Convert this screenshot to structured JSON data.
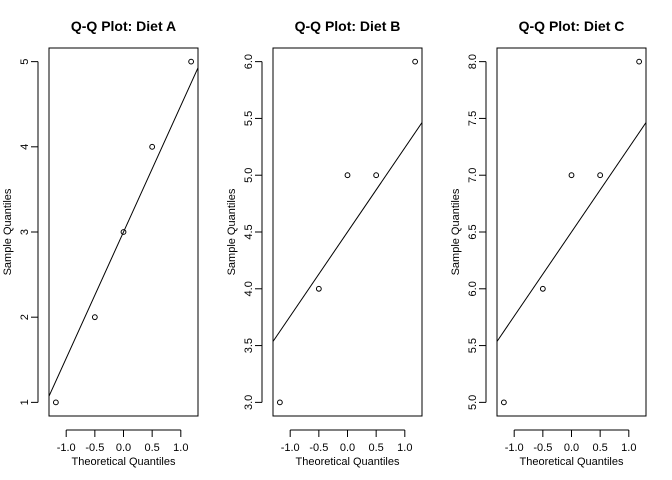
{
  "chart_data": [
    {
      "type": "scatter",
      "title": "Q-Q Plot: Diet A",
      "xlabel": "Theoretical Quantiles",
      "ylabel": "Sample Quantiles",
      "xlim": [
        -1.3,
        1.3
      ],
      "ylim": [
        0.84,
        5.16
      ],
      "x_ticks": [
        -1.0,
        -0.5,
        0.0,
        0.5,
        1.0
      ],
      "x_tick_labels": [
        "-1.0",
        "-0.5",
        "0.0",
        "0.5",
        "1.0"
      ],
      "y_ticks": [
        1,
        2,
        3,
        4,
        5
      ],
      "y_tick_labels": [
        "1",
        "2",
        "3",
        "4",
        "5"
      ],
      "points": [
        {
          "x": -1.18,
          "y": 1
        },
        {
          "x": -0.5,
          "y": 2
        },
        {
          "x": 0.0,
          "y": 3
        },
        {
          "x": 0.5,
          "y": 4
        },
        {
          "x": 1.18,
          "y": 5
        }
      ],
      "reference_line": {
        "intercept": 3.0,
        "slope": 1.483
      }
    },
    {
      "type": "scatter",
      "title": "Q-Q Plot: Diet B",
      "xlabel": "Theoretical Quantiles",
      "ylabel": "Sample Quantiles",
      "xlim": [
        -1.3,
        1.3
      ],
      "ylim": [
        2.88,
        6.12
      ],
      "x_ticks": [
        -1.0,
        -0.5,
        0.0,
        0.5,
        1.0
      ],
      "x_tick_labels": [
        "-1.0",
        "-0.5",
        "0.0",
        "0.5",
        "1.0"
      ],
      "y_ticks": [
        3.0,
        3.5,
        4.0,
        4.5,
        5.0,
        5.5,
        6.0
      ],
      "y_tick_labels": [
        "3.0",
        "3.5",
        "4.0",
        "4.5",
        "5.0",
        "5.5",
        "6.0"
      ],
      "points": [
        {
          "x": -1.18,
          "y": 3
        },
        {
          "x": -0.5,
          "y": 4
        },
        {
          "x": 0.0,
          "y": 5
        },
        {
          "x": 0.5,
          "y": 5
        },
        {
          "x": 1.18,
          "y": 6
        }
      ],
      "reference_line": {
        "intercept": 4.5,
        "slope": 0.7413
      }
    },
    {
      "type": "scatter",
      "title": "Q-Q Plot: Diet C",
      "xlabel": "Theoretical Quantiles",
      "ylabel": "Sample Quantiles",
      "xlim": [
        -1.3,
        1.3
      ],
      "ylim": [
        4.88,
        8.12
      ],
      "x_ticks": [
        -1.0,
        -0.5,
        0.0,
        0.5,
        1.0
      ],
      "x_tick_labels": [
        "-1.0",
        "-0.5",
        "0.0",
        "0.5",
        "1.0"
      ],
      "y_ticks": [
        5.0,
        5.5,
        6.0,
        6.5,
        7.0,
        7.5,
        8.0
      ],
      "y_tick_labels": [
        "5.0",
        "5.5",
        "6.0",
        "6.5",
        "7.0",
        "7.5",
        "8.0"
      ],
      "points": [
        {
          "x": -1.18,
          "y": 5
        },
        {
          "x": -0.5,
          "y": 6
        },
        {
          "x": 0.0,
          "y": 7
        },
        {
          "x": 0.5,
          "y": 7
        },
        {
          "x": 1.18,
          "y": 8
        }
      ],
      "reference_line": {
        "intercept": 6.5,
        "slope": 0.7413
      }
    }
  ]
}
